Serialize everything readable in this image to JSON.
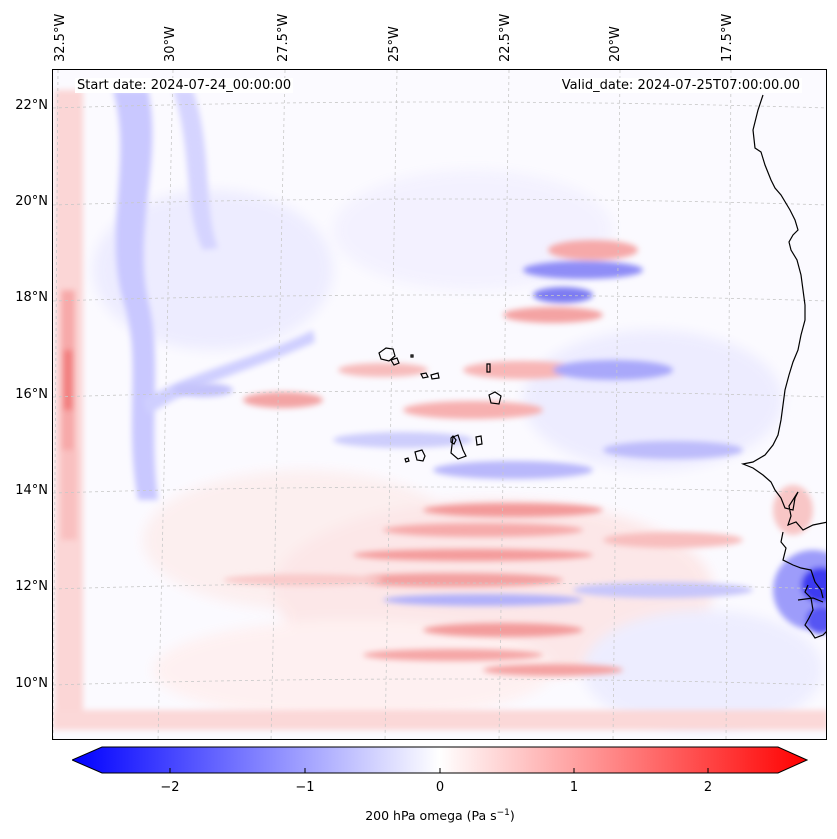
{
  "map": {
    "start_date": "Start date: 2024-07-24_00:00:00",
    "valid_date": "Valid_date: 2024-07-25T07:00:00.00",
    "lon_labels": [
      "32.5°W",
      "30°W",
      "27.5°W",
      "25°W",
      "22.5°W",
      "20°W",
      "17.5°W"
    ],
    "lat_labels": [
      "22°N",
      "20°N",
      "18°N",
      "16°N",
      "14°N",
      "12°N",
      "10°N"
    ]
  },
  "colorbar": {
    "ticks": [
      "−2",
      "−1",
      "0",
      "1",
      "2"
    ],
    "label_prefix": "200 hPa omega (Pa s",
    "label_exponent": "−1",
    "label_suffix": ")",
    "min_color": "#0000ff",
    "mid_color": "#ffffff",
    "max_color": "#ff0000"
  },
  "colors": {
    "coastline": "#000000",
    "gridline": "#c8c8c8"
  }
}
